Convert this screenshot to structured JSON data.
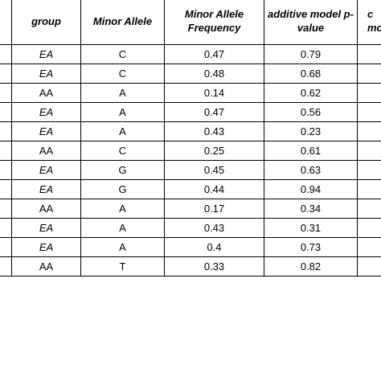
{
  "table": {
    "headers": {
      "group": "group",
      "minor_allele": "Minor Allele",
      "maf": "Minor Allele Frequency",
      "pvalue": "additive model p-value",
      "cut_right": "c\nmo"
    },
    "rows": [
      {
        "group": "EA",
        "group_italic": true,
        "allele": "C",
        "maf": "0.47",
        "p": "0.79"
      },
      {
        "group": "EA",
        "group_italic": true,
        "allele": "C",
        "maf": "0.48",
        "p": "0.68"
      },
      {
        "group": "AA",
        "group_italic": false,
        "allele": "A",
        "maf": "0.14",
        "p": "0.62"
      },
      {
        "group": "EA",
        "group_italic": true,
        "allele": "A",
        "maf": "0.47",
        "p": "0.56"
      },
      {
        "group": "EA",
        "group_italic": true,
        "allele": "A",
        "maf": "0.43",
        "p": "0.23"
      },
      {
        "group": "AA",
        "group_italic": false,
        "allele": "C",
        "maf": "0.25",
        "p": "0.61"
      },
      {
        "group": "EA",
        "group_italic": true,
        "allele": "G",
        "maf": "0.45",
        "p": "0.63"
      },
      {
        "group": "EA",
        "group_italic": true,
        "allele": "G",
        "maf": "0.44",
        "p": "0.94"
      },
      {
        "group": "AA",
        "group_italic": false,
        "allele": "A",
        "maf": "0.17",
        "p": "0.34"
      },
      {
        "group": "EA",
        "group_italic": true,
        "allele": "A",
        "maf": "0.43",
        "p": "0.31"
      },
      {
        "group": "EA",
        "group_italic": true,
        "allele": "A",
        "maf": "0.4",
        "p": "0.73"
      },
      {
        "group": "AA",
        "group_italic": false,
        "allele": "T",
        "maf": "0.33",
        "p": "0.82"
      }
    ]
  }
}
